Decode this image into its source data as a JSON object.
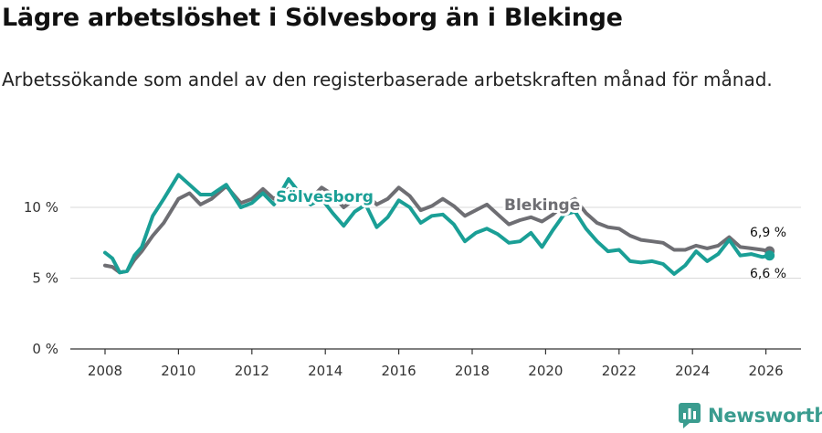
{
  "title": "Lägre arbetslöshet i Sölvesborg än i Blekinge",
  "subtitle": "Arbetssökande som andel av den registerbaserade arbetskraften månad för månad.",
  "brand": {
    "name": "Newsworthy",
    "icon": "newsworthy-logo-icon"
  },
  "colors": {
    "solvesborg": "#1a9f96",
    "blekinge": "#6e6e73",
    "grid": "#d9d9d9",
    "axis": "#333333"
  },
  "chart_data": {
    "type": "line",
    "title": "Lägre arbetslöshet i Sölvesborg än i Blekinge",
    "xlabel": "",
    "ylabel": "",
    "xlim": [
      2007,
      2027
    ],
    "ylim": [
      0,
      12.5
    ],
    "x_ticks": [
      2008,
      2010,
      2012,
      2014,
      2016,
      2018,
      2020,
      2022,
      2024,
      2026
    ],
    "x_tick_labels": [
      "2008",
      "2010",
      "2012",
      "2014",
      "2016",
      "2018",
      "2020",
      "2022",
      "2024",
      "2026"
    ],
    "y_ticks": [
      0,
      5,
      10
    ],
    "y_tick_labels": [
      "0 %",
      "5 %",
      "10 %"
    ],
    "grid": "horizontal",
    "series": [
      {
        "name": "Blekinge",
        "label": "Blekinge",
        "end_label": "6,9 %",
        "points": [
          [
            2008.0,
            5.9
          ],
          [
            2008.2,
            5.8
          ],
          [
            2008.4,
            5.4
          ],
          [
            2008.6,
            5.5
          ],
          [
            2008.8,
            6.3
          ],
          [
            2009.0,
            6.9
          ],
          [
            2009.3,
            8.0
          ],
          [
            2009.6,
            8.9
          ],
          [
            2010.0,
            10.6
          ],
          [
            2010.3,
            11.0
          ],
          [
            2010.6,
            10.2
          ],
          [
            2010.9,
            10.6
          ],
          [
            2011.3,
            11.5
          ],
          [
            2011.7,
            10.3
          ],
          [
            2012.0,
            10.6
          ],
          [
            2012.3,
            11.3
          ],
          [
            2012.6,
            10.6
          ],
          [
            2013.0,
            11.3
          ],
          [
            2013.3,
            11.2
          ],
          [
            2013.6,
            10.6
          ],
          [
            2013.9,
            11.4
          ],
          [
            2014.2,
            10.9
          ],
          [
            2014.5,
            10.0
          ],
          [
            2014.8,
            10.6
          ],
          [
            2015.1,
            11.0
          ],
          [
            2015.4,
            10.2
          ],
          [
            2015.7,
            10.6
          ],
          [
            2016.0,
            11.4
          ],
          [
            2016.3,
            10.8
          ],
          [
            2016.6,
            9.8
          ],
          [
            2016.9,
            10.1
          ],
          [
            2017.2,
            10.6
          ],
          [
            2017.5,
            10.1
          ],
          [
            2017.8,
            9.4
          ],
          [
            2018.1,
            9.8
          ],
          [
            2018.4,
            10.2
          ],
          [
            2018.7,
            9.5
          ],
          [
            2019.0,
            8.8
          ],
          [
            2019.3,
            9.1
          ],
          [
            2019.6,
            9.3
          ],
          [
            2019.9,
            9.0
          ],
          [
            2020.2,
            9.5
          ],
          [
            2020.5,
            10.2
          ],
          [
            2020.8,
            10.6
          ],
          [
            2021.1,
            9.6
          ],
          [
            2021.4,
            8.9
          ],
          [
            2021.7,
            8.6
          ],
          [
            2022.0,
            8.5
          ],
          [
            2022.3,
            8.0
          ],
          [
            2022.6,
            7.7
          ],
          [
            2022.9,
            7.6
          ],
          [
            2023.2,
            7.5
          ],
          [
            2023.5,
            7.0
          ],
          [
            2023.8,
            7.0
          ],
          [
            2024.1,
            7.3
          ],
          [
            2024.4,
            7.1
          ],
          [
            2024.7,
            7.3
          ],
          [
            2025.0,
            7.9
          ],
          [
            2025.3,
            7.2
          ],
          [
            2025.6,
            7.1
          ],
          [
            2025.9,
            7.0
          ],
          [
            2026.1,
            6.9
          ]
        ]
      },
      {
        "name": "Sölvesborg",
        "label": "Sölvesborg",
        "end_label": "6,6 %",
        "points": [
          [
            2008.0,
            6.8
          ],
          [
            2008.2,
            6.4
          ],
          [
            2008.4,
            5.4
          ],
          [
            2008.6,
            5.5
          ],
          [
            2008.8,
            6.6
          ],
          [
            2009.0,
            7.2
          ],
          [
            2009.3,
            9.4
          ],
          [
            2009.6,
            10.6
          ],
          [
            2010.0,
            12.3
          ],
          [
            2010.3,
            11.6
          ],
          [
            2010.6,
            10.9
          ],
          [
            2010.9,
            10.9
          ],
          [
            2011.3,
            11.6
          ],
          [
            2011.7,
            10.0
          ],
          [
            2012.0,
            10.3
          ],
          [
            2012.3,
            11.0
          ],
          [
            2012.6,
            10.2
          ],
          [
            2013.0,
            12.0
          ],
          [
            2013.3,
            11.0
          ],
          [
            2013.6,
            10.2
          ],
          [
            2013.9,
            10.6
          ],
          [
            2014.2,
            9.6
          ],
          [
            2014.5,
            8.7
          ],
          [
            2014.8,
            9.7
          ],
          [
            2015.1,
            10.2
          ],
          [
            2015.4,
            8.6
          ],
          [
            2015.7,
            9.3
          ],
          [
            2016.0,
            10.5
          ],
          [
            2016.3,
            10.0
          ],
          [
            2016.6,
            8.9
          ],
          [
            2016.9,
            9.4
          ],
          [
            2017.2,
            9.5
          ],
          [
            2017.5,
            8.8
          ],
          [
            2017.8,
            7.6
          ],
          [
            2018.1,
            8.2
          ],
          [
            2018.4,
            8.5
          ],
          [
            2018.7,
            8.1
          ],
          [
            2019.0,
            7.5
          ],
          [
            2019.3,
            7.6
          ],
          [
            2019.6,
            8.2
          ],
          [
            2019.9,
            7.2
          ],
          [
            2020.2,
            8.4
          ],
          [
            2020.5,
            9.5
          ],
          [
            2020.8,
            9.7
          ],
          [
            2021.1,
            8.5
          ],
          [
            2021.4,
            7.6
          ],
          [
            2021.7,
            6.9
          ],
          [
            2022.0,
            7.0
          ],
          [
            2022.3,
            6.2
          ],
          [
            2022.6,
            6.1
          ],
          [
            2022.9,
            6.2
          ],
          [
            2023.2,
            6.0
          ],
          [
            2023.5,
            5.3
          ],
          [
            2023.8,
            5.9
          ],
          [
            2024.1,
            6.9
          ],
          [
            2024.4,
            6.2
          ],
          [
            2024.7,
            6.7
          ],
          [
            2025.0,
            7.7
          ],
          [
            2025.3,
            6.6
          ],
          [
            2025.6,
            6.7
          ],
          [
            2025.9,
            6.5
          ],
          [
            2026.1,
            6.6
          ]
        ]
      }
    ]
  }
}
